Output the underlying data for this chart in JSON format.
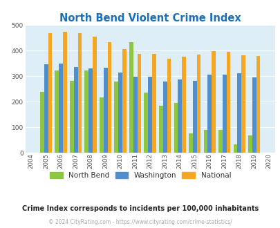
{
  "title": "North Bend Violent Crime Index",
  "years": [
    2004,
    2005,
    2006,
    2007,
    2008,
    2009,
    2010,
    2011,
    2012,
    2013,
    2014,
    2015,
    2016,
    2017,
    2018,
    2019,
    2020
  ],
  "north_bend": [
    0,
    238,
    322,
    282,
    323,
    217,
    278,
    432,
    235,
    184,
    195,
    77,
    90,
    90,
    33,
    68,
    0
  ],
  "washington": [
    0,
    347,
    348,
    337,
    330,
    334,
    315,
    298,
    299,
    278,
    288,
    283,
    305,
    307,
    312,
    295,
    0
  ],
  "national": [
    0,
    469,
    474,
    467,
    455,
    432,
    405,
    387,
    387,
    368,
    377,
    384,
    398,
    394,
    381,
    379,
    0
  ],
  "north_bend_color": "#8dc63f",
  "washington_color": "#4f8fcd",
  "national_color": "#f5a623",
  "bg_color": "#ddeef6",
  "ylim": [
    0,
    500
  ],
  "yticks": [
    0,
    100,
    200,
    300,
    400,
    500
  ],
  "subtitle": "Crime Index corresponds to incidents per 100,000 inhabitants",
  "footer": "© 2024 CityRating.com - https://www.cityrating.com/crime-statistics/",
  "legend_labels": [
    "North Bend",
    "Washington",
    "National"
  ],
  "title_color": "#1a6fbb",
  "subtitle_color": "#222222",
  "footer_color": "#aaaaaa"
}
